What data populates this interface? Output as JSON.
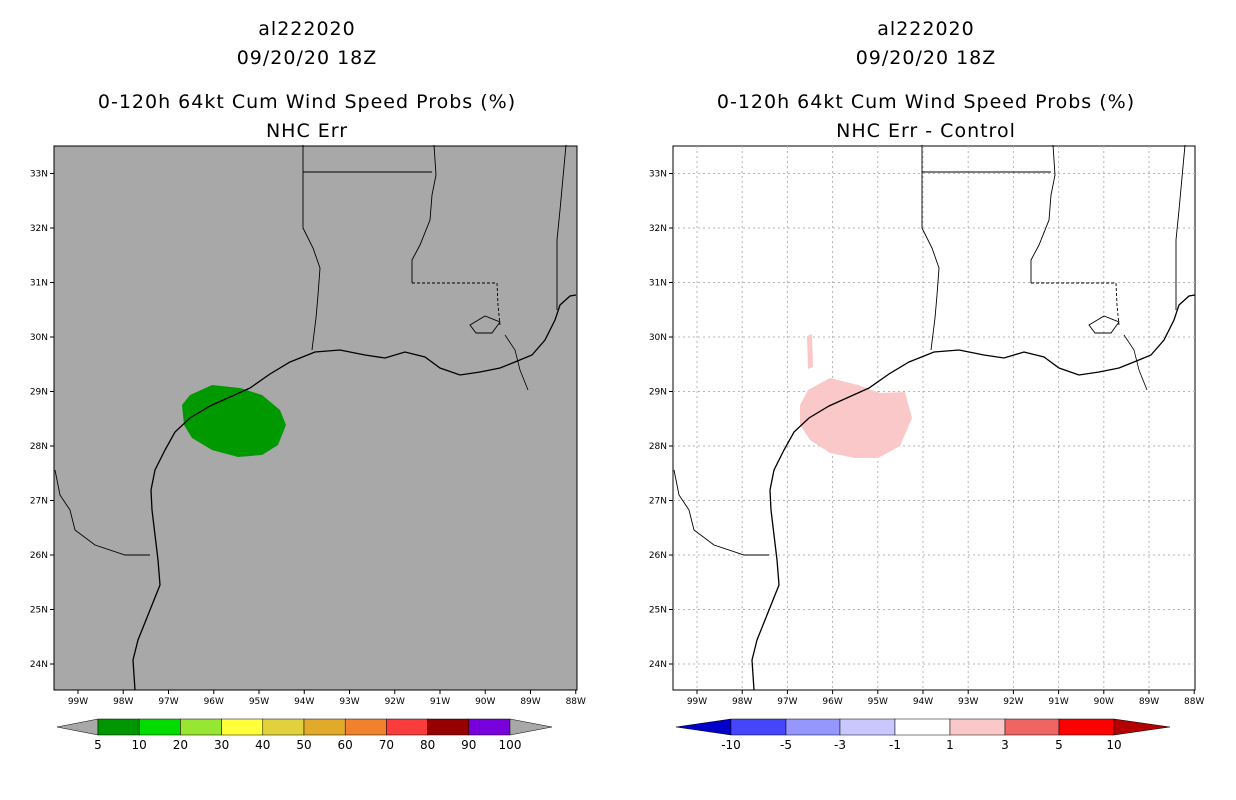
{
  "left": {
    "storm_id": "al222020",
    "datetime": "09/20/20 18Z",
    "product": "0-120h 64kt Cum Wind Speed Probs (%)",
    "subtitle": "NHC Err",
    "background_color": "#a8a8a8",
    "contour_color": "#009a00",
    "colorbar": {
      "colors": [
        "#009600",
        "#00dc00",
        "#96e632",
        "#ffff3c",
        "#e1d23c",
        "#e1aa28",
        "#f0822d",
        "#fa3c3c",
        "#960000",
        "#7800dc"
      ],
      "labels": [
        "5",
        "10",
        "20",
        "30",
        "40",
        "50",
        "60",
        "70",
        "80",
        "90",
        "100"
      ]
    }
  },
  "right": {
    "storm_id": "al222020",
    "datetime": "09/20/20 18Z",
    "product": "0-120h 64kt Cum Wind Speed Probs (%)",
    "subtitle": "NHC Err - Control",
    "background_color": "#ffffff",
    "contour_color": "#fac8c8",
    "colorbar": {
      "colors": [
        "#0000c8",
        "#4646ff",
        "#9696ff",
        "#c8c8ff",
        "#ffffff",
        "#fac8c8",
        "#f06464",
        "#ff0000",
        "#b40000"
      ],
      "labels": [
        "-10",
        "-5",
        "-3",
        "-1",
        "1",
        "3",
        "5",
        "10"
      ]
    }
  },
  "axes": {
    "lat_labels": [
      "24N",
      "25N",
      "26N",
      "27N",
      "28N",
      "29N",
      "30N",
      "31N",
      "32N",
      "33N"
    ],
    "lon_labels": [
      "99W",
      "98W",
      "97W",
      "96W",
      "95W",
      "94W",
      "93W",
      "92W",
      "91W",
      "90W",
      "89W",
      "88W"
    ]
  }
}
